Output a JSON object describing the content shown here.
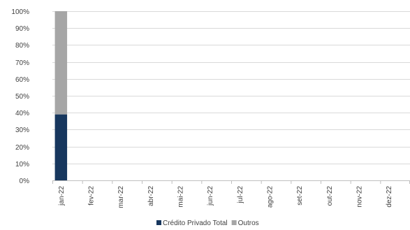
{
  "chart_data": {
    "type": "bar",
    "stacked": true,
    "percent": true,
    "categories": [
      "jan-22",
      "fev-22",
      "mar-22",
      "abr-22",
      "mai-22",
      "jun-22",
      "jul-22",
      "ago-22",
      "set-22",
      "out-22",
      "nov-22",
      "dez-22"
    ],
    "series": [
      {
        "name": "Crédito Privado Total",
        "color": "#17375e",
        "values": [
          39,
          null,
          null,
          null,
          null,
          null,
          null,
          null,
          null,
          null,
          null,
          null
        ]
      },
      {
        "name": "Outros",
        "color": "#a6a6a6",
        "values": [
          61,
          null,
          null,
          null,
          null,
          null,
          null,
          null,
          null,
          null,
          null,
          null
        ]
      }
    ],
    "ylim": [
      0,
      100
    ],
    "yticks": [
      "0%",
      "10%",
      "20%",
      "30%",
      "40%",
      "50%",
      "60%",
      "70%",
      "80%",
      "90%",
      "100%"
    ],
    "grid": true,
    "legend_position": "bottom"
  }
}
